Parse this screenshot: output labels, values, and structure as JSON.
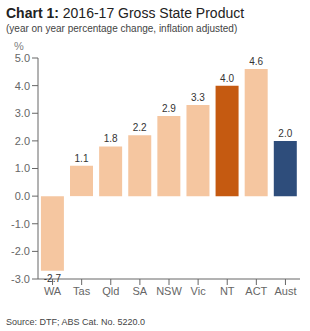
{
  "chart_data": {
    "type": "bar",
    "title": "Chart 1: 2016-17 Gross State Product",
    "subtitle": "(year on year percentage change, inflation adjusted)",
    "ylabel": "%",
    "annotations": [
      "Source: DTF; ABS Cat. No. 5220.0"
    ],
    "categories": [
      "WA",
      "Tas",
      "Qld",
      "SA",
      "NSW",
      "Vic",
      "NT",
      "ACT",
      "Aust"
    ],
    "values": [
      -2.7,
      1.1,
      1.8,
      2.2,
      2.9,
      3.3,
      4.0,
      4.6,
      2.0
    ],
    "value_labels": [
      "-2.7",
      "1.1",
      "1.8",
      "2.2",
      "2.9",
      "3.3",
      "4.0",
      "4.6",
      "2.0"
    ],
    "data_labels": true,
    "colors": [
      "#f5c6a0",
      "#f5c6a0",
      "#f5c6a0",
      "#f5c6a0",
      "#f5c6a0",
      "#f5c6a0",
      "#c55a11",
      "#f5c6a0",
      "#2e4d7b"
    ],
    "ylim": [
      -3.0,
      5.0
    ],
    "yticks": [
      {
        "value": -3.0,
        "label": "-3.0"
      },
      {
        "value": -2.0,
        "label": "-2.0"
      },
      {
        "value": -1.0,
        "label": "-1.0"
      },
      {
        "value": 0.0,
        "label": "0.0"
      },
      {
        "value": 1.0,
        "label": "1.0"
      },
      {
        "value": 2.0,
        "label": "2.0"
      },
      {
        "value": 3.0,
        "label": "3.0"
      },
      {
        "value": 4.0,
        "label": "4.0"
      },
      {
        "value": 5.0,
        "label": "5.0"
      }
    ],
    "grid": false
  }
}
